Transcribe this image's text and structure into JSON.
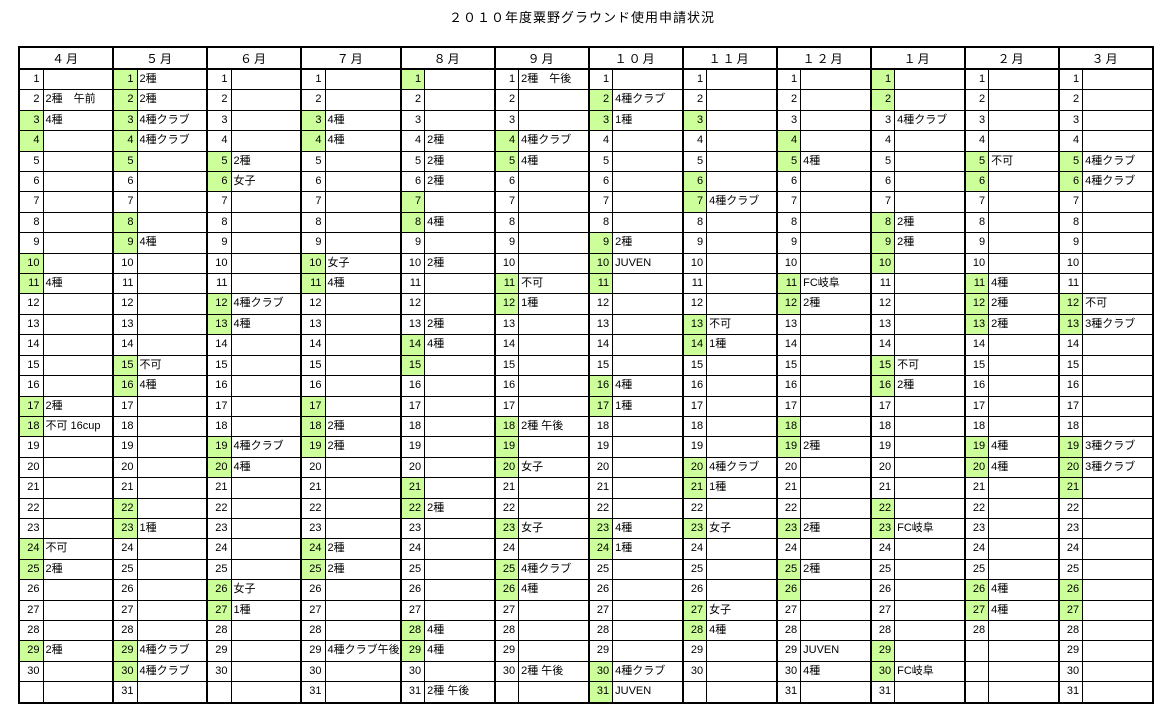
{
  "title": "２０１０年度粟野グラウンド使用申請状況",
  "colors": {
    "holiday_highlight": "#ccff99",
    "grid": "#000000",
    "background": "#ffffff"
  },
  "calendar": {
    "rows": 31,
    "months": [
      {
        "label": "４月",
        "days": 30,
        "highlighted": [
          3,
          4,
          10,
          11,
          17,
          18,
          24,
          25,
          29
        ],
        "notes": {
          "2": "2種　午前",
          "3": "4種",
          "11": "4種",
          "17": "2種",
          "18": "不可 16cup",
          "24": "不可",
          "25": "2種",
          "29": "2種"
        }
      },
      {
        "label": "５月",
        "days": 31,
        "highlighted": [
          1,
          2,
          3,
          4,
          5,
          8,
          9,
          15,
          16,
          22,
          23,
          29,
          30
        ],
        "notes": {
          "1": "2種",
          "2": "2種",
          "3": "4種クラブ",
          "4": "4種クラブ",
          "9": "4種",
          "15": "不可",
          "16": "4種",
          "23": "1種",
          "29": "4種クラブ",
          "30": "4種クラブ"
        }
      },
      {
        "label": "６月",
        "days": 30,
        "highlighted": [
          5,
          6,
          12,
          13,
          19,
          20,
          26,
          27
        ],
        "notes": {
          "5": "2種",
          "6": "女子",
          "12": "4種クラブ",
          "13": "4種",
          "19": "4種クラブ",
          "20": "4種",
          "26": "女子",
          "27": "1種"
        }
      },
      {
        "label": "７月",
        "days": 31,
        "highlighted": [
          3,
          4,
          10,
          11,
          17,
          18,
          19,
          24,
          25
        ],
        "notes": {
          "3": "4種",
          "4": "4種",
          "10": "女子",
          "11": "4種",
          "18": "2種",
          "19": "2種",
          "24": "2種",
          "25": "2種",
          "29": "4種クラブ午後"
        }
      },
      {
        "label": "８月",
        "days": 31,
        "highlighted": [
          1,
          7,
          8,
          14,
          15,
          21,
          22,
          28,
          29
        ],
        "notes": {
          "4": "2種",
          "5": "2種",
          "6": "2種",
          "8": "4種",
          "10": "2種",
          "13": "2種",
          "14": "4種",
          "22": "2種",
          "28": "4種",
          "29": "4種",
          "31": "2種 午後"
        }
      },
      {
        "label": "９月",
        "days": 30,
        "highlighted": [
          4,
          5,
          11,
          12,
          18,
          19,
          20,
          23,
          25,
          26
        ],
        "notes": {
          "1": "2種　午後",
          "4": "4種クラブ",
          "5": "4種",
          "11": "不可",
          "12": "1種",
          "18": "2種 午後",
          "20": "女子",
          "23": "女子",
          "25": "4種クラブ",
          "26": "4種",
          "30": "2種 午後"
        }
      },
      {
        "label": "１０月",
        "days": 31,
        "highlighted": [
          2,
          3,
          9,
          10,
          11,
          16,
          17,
          23,
          24,
          30,
          31
        ],
        "notes": {
          "2": "4種クラブ",
          "3": "1種",
          "9": "2種",
          "10": "JUVEN",
          "16": "4種",
          "17": "1種",
          "23": "4種",
          "24": "1種",
          "30": "4種クラブ",
          "31": "JUVEN"
        }
      },
      {
        "label": "１１月",
        "days": 30,
        "highlighted": [
          3,
          6,
          7,
          13,
          14,
          20,
          21,
          23,
          27,
          28
        ],
        "notes": {
          "7": "4種クラブ",
          "13": "不可",
          "14": "1種",
          "20": "4種クラブ",
          "21": "1種",
          "23": "女子",
          "27": "女子",
          "28": "4種"
        }
      },
      {
        "label": "１２月",
        "days": 31,
        "highlighted": [
          4,
          5,
          11,
          12,
          18,
          19,
          23,
          25,
          26
        ],
        "notes": {
          "5": "4種",
          "11": "FC岐阜",
          "12": "2種",
          "19": "2種",
          "23": "2種",
          "25": "2種",
          "29": "JUVEN",
          "30": "4種"
        }
      },
      {
        "label": "１月",
        "days": 31,
        "highlighted": [
          1,
          2,
          8,
          9,
          10,
          15,
          16,
          22,
          23,
          29,
          30
        ],
        "notes": {
          "3": "4種クラブ",
          "8": "2種",
          "9": "2種",
          "15": "不可",
          "16": "2種",
          "23": "FC岐阜",
          "30": "FC岐阜"
        }
      },
      {
        "label": "２月",
        "days": 28,
        "highlighted": [
          5,
          6,
          11,
          12,
          13,
          19,
          20,
          26,
          27
        ],
        "notes": {
          "5": "不可",
          "11": "4種",
          "12": "2種",
          "13": "2種",
          "19": "4種",
          "20": "4種",
          "26": "4種",
          "27": "4種"
        }
      },
      {
        "label": "３月",
        "days": 31,
        "highlighted": [
          5,
          6,
          12,
          13,
          19,
          20,
          21,
          26,
          27
        ],
        "notes": {
          "5": "4種クラブ",
          "6": "4種クラブ",
          "12": "不可",
          "13": "3種クラブ",
          "19": "3種クラブ",
          "20": "3種クラブ"
        }
      }
    ]
  }
}
